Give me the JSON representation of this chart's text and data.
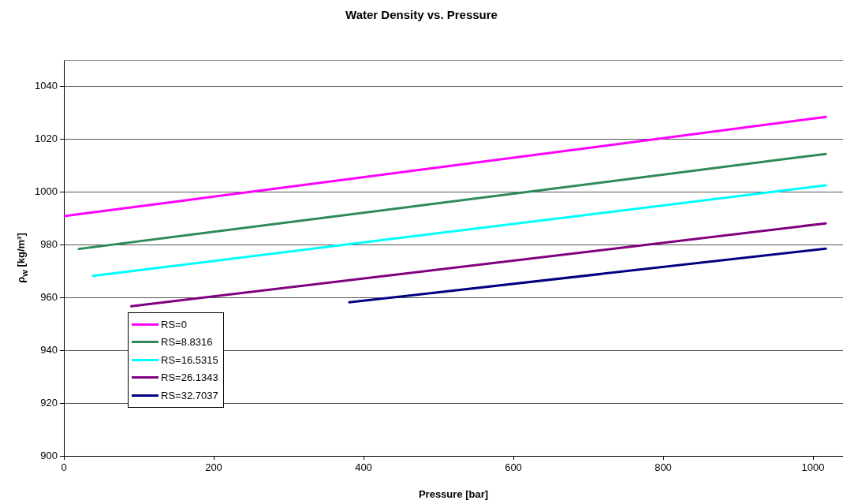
{
  "chart_data": {
    "type": "line",
    "title": "Water Density vs. Pressure",
    "xlabel": "Pressure [bar]",
    "ylabel": "ρ$_{w}$ [kg/m³]",
    "xlim": [
      0,
      1040
    ],
    "xticks": [
      0,
      200,
      400,
      600,
      800,
      1000
    ],
    "ylim": [
      900,
      1050
    ],
    "yticks": [
      900,
      920,
      940,
      960,
      980,
      1000,
      1020,
      1040
    ],
    "grid": "y",
    "legend": "bottom left",
    "marker": "none",
    "line_style": "solid",
    "series": [
      {
        "name": "RS=0",
        "color": "#ff00ff",
        "x": [
          0,
          1017
        ],
        "values": [
          990.8,
          1028.4
        ]
      },
      {
        "name": "RS=8.8316",
        "color": "#2e8b57",
        "x": [
          20,
          1017
        ],
        "values": [
          978.4,
          1014.4
        ]
      },
      {
        "name": "RS=16.5315",
        "color": "#00ffff",
        "x": [
          39,
          1017
        ],
        "values": [
          968.2,
          1002.5
        ]
      },
      {
        "name": "RS=26.1343",
        "color": "#800080",
        "x": [
          90,
          1017
        ],
        "values": [
          956.7,
          988.1
        ]
      },
      {
        "name": "RS=32.7037",
        "color": "#000080",
        "x": [
          381,
          1017
        ],
        "values": [
          958.2,
          978.5
        ]
      }
    ]
  }
}
